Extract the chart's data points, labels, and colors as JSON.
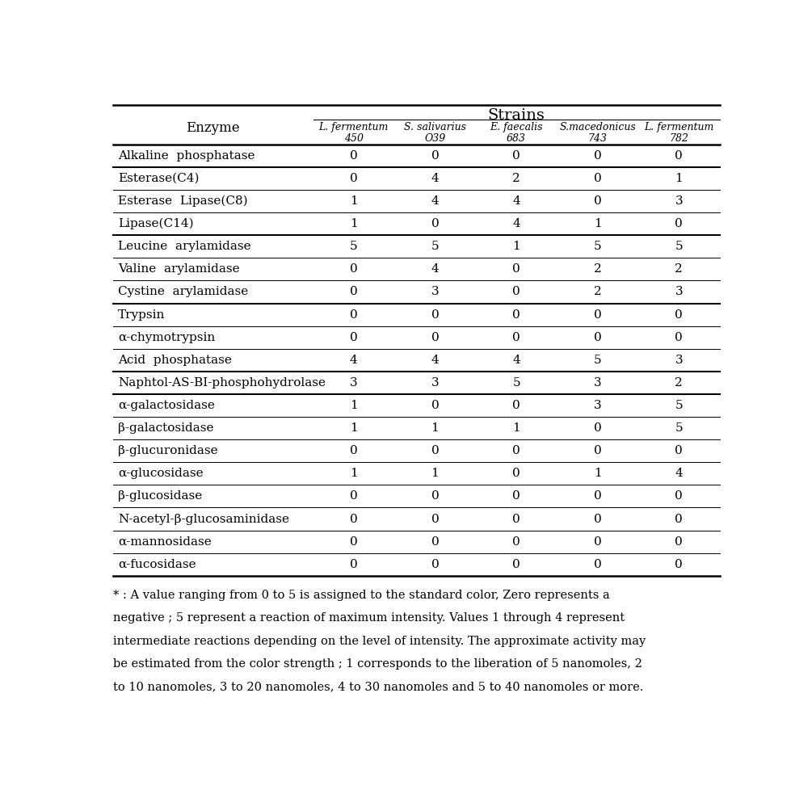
{
  "title": "Strains",
  "enzyme_col_header": "Enzyme",
  "strain_headers_line1": [
    "L. fermentum",
    "S. salivarius",
    "E. faecalis",
    "S.macedonicus",
    "L. fermentum"
  ],
  "strain_headers_line2": [
    "450",
    "O39",
    "683",
    "743",
    "782"
  ],
  "enzymes": [
    "Alkaline  phosphatase",
    "Esterase(C4)",
    "Esterase  Lipase(C8)",
    "Lipase(C14)",
    "Leucine  arylamidase",
    "Valine  arylamidase",
    "Cystine  arylamidase",
    "Trypsin",
    "α-chymotrypsin",
    "Acid  phosphatase",
    "Naphtol-AS-BI-phosphohydrolase",
    "α-galactosidase",
    "β-galactosidase",
    "β-glucuronidase",
    "α-glucosidase",
    "β-glucosidase",
    "N-acetyl-β-glucosaminidase",
    "α-mannosidase",
    "α-fucosidase"
  ],
  "data": [
    [
      0,
      0,
      0,
      0,
      0
    ],
    [
      0,
      4,
      2,
      0,
      1
    ],
    [
      1,
      4,
      4,
      0,
      3
    ],
    [
      1,
      0,
      4,
      1,
      0
    ],
    [
      5,
      5,
      1,
      5,
      5
    ],
    [
      0,
      4,
      0,
      2,
      2
    ],
    [
      0,
      3,
      0,
      2,
      3
    ],
    [
      0,
      0,
      0,
      0,
      0
    ],
    [
      0,
      0,
      0,
      0,
      0
    ],
    [
      4,
      4,
      4,
      5,
      3
    ],
    [
      3,
      3,
      5,
      3,
      2
    ],
    [
      1,
      0,
      0,
      3,
      5
    ],
    [
      1,
      1,
      1,
      0,
      5
    ],
    [
      0,
      0,
      0,
      0,
      0
    ],
    [
      1,
      1,
      0,
      1,
      4
    ],
    [
      0,
      0,
      0,
      0,
      0
    ],
    [
      0,
      0,
      0,
      0,
      0
    ],
    [
      0,
      0,
      0,
      0,
      0
    ],
    [
      0,
      0,
      0,
      0,
      0
    ]
  ],
  "footnote_lines": [
    "* : A value ranging from 0 to 5 is assigned to the standard color, Zero represents a",
    "negative ; 5 represent a reaction of maximum intensity. Values 1 through 4 represent",
    "intermediate reactions depending on the level of intensity. The approximate activity may",
    "be estimated from the color strength ; 1 corresponds to the liberation of 5 nanomoles, 2",
    "to 10 nanomoles, 3 to 20 nanomoles, 4 to 30 nanomoles and 5 to 40 nanomoles or more."
  ],
  "thick_below": [
    0,
    3,
    6,
    9,
    10
  ],
  "bg_color": "#ffffff",
  "text_color": "#000000",
  "data_font_size": 11,
  "header_font_size": 12,
  "title_font_size": 14,
  "strain_label_fontsize": 9,
  "footnote_fontsize": 10.5
}
